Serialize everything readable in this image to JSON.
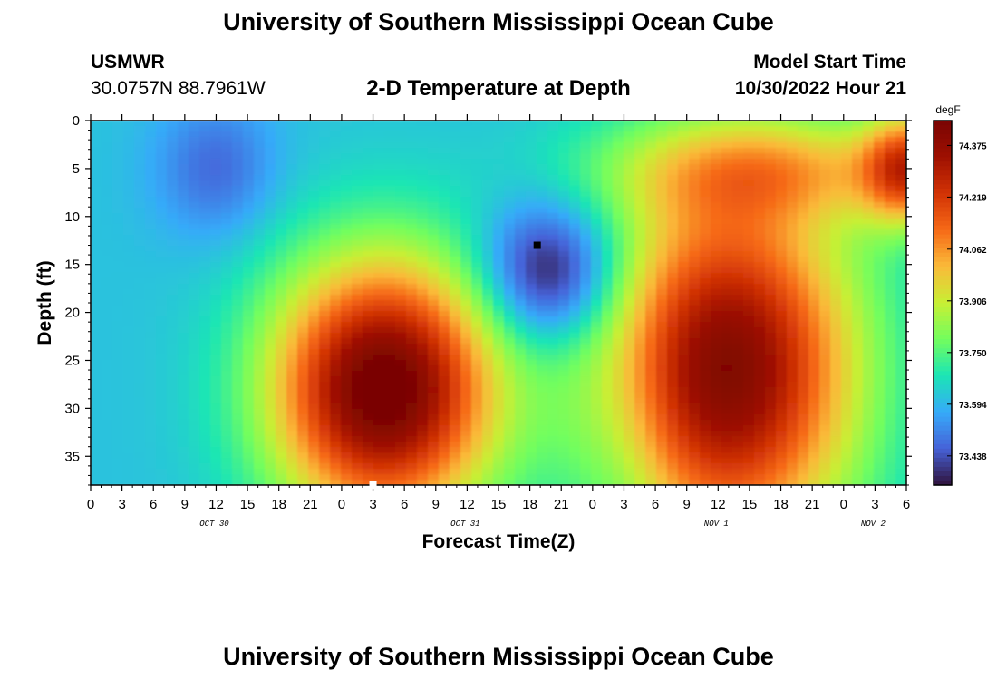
{
  "header": {
    "title": "University of Southern Mississippi Ocean Cube",
    "station": "USMWR",
    "location": "30.0757N  88.7961W",
    "subtitle": "2-D Temperature at Depth",
    "model_start_label": "Model Start Time",
    "model_start_value": "10/30/2022 Hour 21"
  },
  "footer": {
    "title": "University of Southern Mississippi Ocean Cube"
  },
  "chart_data": {
    "type": "heatmap",
    "xlabel": "Forecast Time(Z)",
    "ylabel": "Depth (ft)",
    "y_ticks": [
      0,
      5,
      10,
      15,
      20,
      25,
      30,
      35
    ],
    "ylim": [
      0,
      38
    ],
    "y_inverted": true,
    "x_tick_labels": [
      "0",
      "3",
      "6",
      "9",
      "12",
      "15",
      "18",
      "21",
      "0",
      "3",
      "6",
      "9",
      "12",
      "15",
      "18",
      "21",
      "0",
      "3",
      "6",
      "9",
      "12",
      "15",
      "18",
      "21",
      "0",
      "3",
      "6"
    ],
    "date_labels": [
      {
        "label": "OCT 30",
        "at_tick": 4
      },
      {
        "label": "OCT 31",
        "at_tick": 12
      },
      {
        "label": "NOV 1",
        "at_tick": 20
      },
      {
        "label": "NOV 2",
        "at_tick": 25
      }
    ],
    "colorbar": {
      "unit": "degF",
      "ticks": [
        "74.375",
        "74.219",
        "74.062",
        "73.906",
        "73.750",
        "73.594",
        "73.438"
      ],
      "range": [
        73.35,
        74.45
      ]
    },
    "markers": [
      {
        "label": "max",
        "forecast_hour": 27.0,
        "depth_ft": 38,
        "color": "#ffffff"
      },
      {
        "label": "min",
        "forecast_hour": 42.7,
        "depth_ft": 13,
        "color": "#000000"
      }
    ]
  }
}
